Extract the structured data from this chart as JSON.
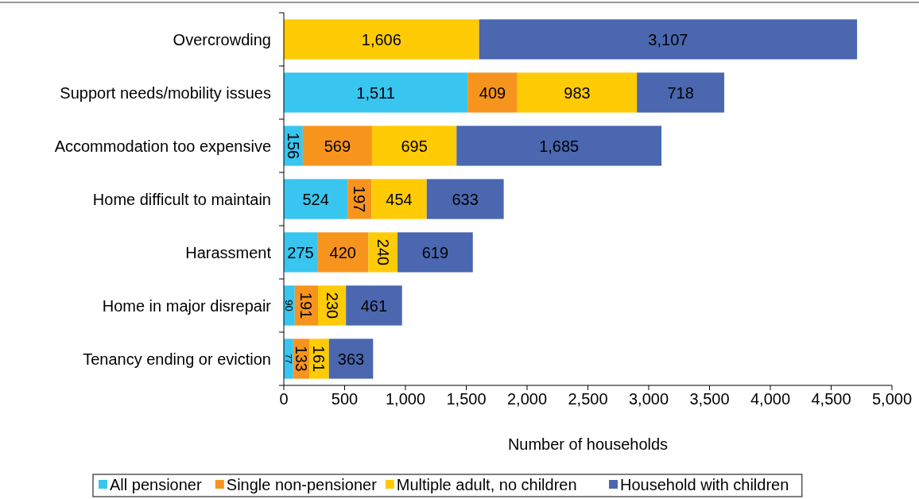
{
  "chart_data": {
    "type": "bar",
    "orientation": "horizontal",
    "stacked": true,
    "xlabel": "Number of households",
    "categories": [
      "Overcrowding",
      "Support needs/mobility issues",
      "Accommodation too expensive",
      "Home difficult to maintain",
      "Harassment",
      "Home in major disrepair",
      "Tenancy ending or eviction"
    ],
    "series": [
      {
        "name": "All pensioner",
        "color": "#38c5f0",
        "values": [
          null,
          1511,
          156,
          524,
          275,
          90,
          77
        ],
        "value_labels": [
          null,
          "1,511",
          "156",
          "524",
          "275",
          "90",
          "77"
        ]
      },
      {
        "name": "Single non-pensioner",
        "color": "#f7941d",
        "values": [
          null,
          409,
          569,
          197,
          420,
          191,
          133
        ],
        "value_labels": [
          null,
          "409",
          "569",
          "197",
          "420",
          "191",
          "133"
        ]
      },
      {
        "name": "Multiple adult, no children",
        "color": "#ffcb05",
        "values": [
          1606,
          983,
          695,
          454,
          240,
          230,
          161
        ],
        "value_labels": [
          "1,606",
          "983",
          "695",
          "454",
          "240",
          "230",
          "161"
        ]
      },
      {
        "name": "Household with children",
        "color": "#4a67b0",
        "values": [
          3107,
          718,
          1685,
          633,
          619,
          461,
          363
        ],
        "value_labels": [
          "3,107",
          "718",
          "1,685",
          "633",
          "619",
          "461",
          "363"
        ]
      }
    ],
    "xlim": [
      0,
      5000
    ],
    "xticks": [
      {
        "value": 0,
        "label": "0"
      },
      {
        "value": 500,
        "label": "500"
      },
      {
        "value": 1000,
        "label": "1,000"
      },
      {
        "value": 1500,
        "label": "1,500"
      },
      {
        "value": 2000,
        "label": "2,000"
      },
      {
        "value": 2500,
        "label": "2,500"
      },
      {
        "value": 3000,
        "label": "3,000"
      },
      {
        "value": 3500,
        "label": "3,500"
      },
      {
        "value": 4000,
        "label": "4,000"
      },
      {
        "value": 4500,
        "label": "4,500"
      },
      {
        "value": 5000,
        "label": "5,000"
      }
    ],
    "grid": false,
    "legend": "bottom"
  }
}
